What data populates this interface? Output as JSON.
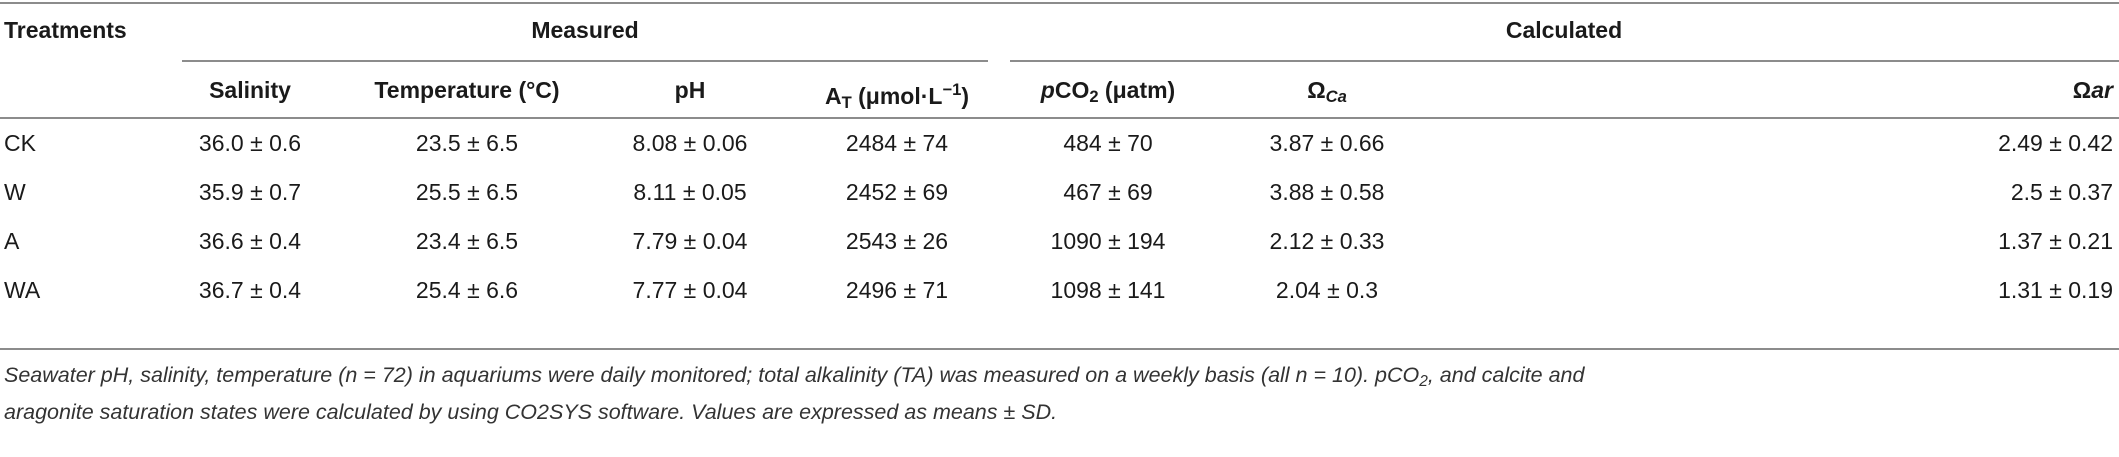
{
  "header": {
    "treatments_label": "Treatments",
    "group_measured": "Measured",
    "group_calculated": "Calculated",
    "columns": {
      "salinity": "Salinity",
      "temperature": "Temperature (°C)",
      "ph": "pH",
      "at_main": "A",
      "at_sub": "T",
      "at_unit": " (μmol·L",
      "at_sup": "−1",
      "at_close": ")",
      "pco2_p": "p",
      "pco2_co": "CO",
      "pco2_sub": "2",
      "pco2_unit": " (μatm)",
      "omega_ca_main": "Ω",
      "omega_ca_sub": "Ca",
      "omega_ar_main": "Ω",
      "omega_ar_suffix": "ar"
    }
  },
  "rows": [
    {
      "treatment": "CK",
      "salinity": "36.0 ± 0.6",
      "temperature": "23.5 ± 6.5",
      "ph": "8.08 ± 0.06",
      "at": "2484 ± 74",
      "pco2": "484 ± 70",
      "omega_ca": "3.87 ± 0.66",
      "omega_ar": "2.49 ± 0.42"
    },
    {
      "treatment": "W",
      "salinity": "35.9 ± 0.7",
      "temperature": "25.5 ± 6.5",
      "ph": "8.11 ± 0.05",
      "at": "2452 ± 69",
      "pco2": "467 ± 69",
      "omega_ca": "3.88 ± 0.58",
      "omega_ar": "2.5 ± 0.37"
    },
    {
      "treatment": "A",
      "salinity": "36.6 ± 0.4",
      "temperature": "23.4 ± 6.5",
      "ph": "7.79 ± 0.04",
      "at": "2543 ± 26",
      "pco2": "1090 ± 194",
      "omega_ca": "2.12 ± 0.33",
      "omega_ar": "1.37 ± 0.21"
    },
    {
      "treatment": "WA",
      "salinity": "36.7 ± 0.4",
      "temperature": "25.4 ± 6.6",
      "ph": "7.77 ± 0.04",
      "at": "2496 ± 71",
      "pco2": "1098 ± 141",
      "omega_ca": "2.04 ± 0.3",
      "omega_ar": "1.31 ± 0.19"
    }
  ],
  "caption": {
    "line1": "Seawater pH, salinity, temperature (n = 72) in aquariums were daily monitored; total alkalinity (TA) was measured on a weekly basis (all n = 10). pCO",
    "line1_sub": "2",
    "line1_end": ", and calcite and",
    "line2": "aragonite saturation states were calculated by using CO2SYS software. Values are expressed as means ± SD."
  }
}
